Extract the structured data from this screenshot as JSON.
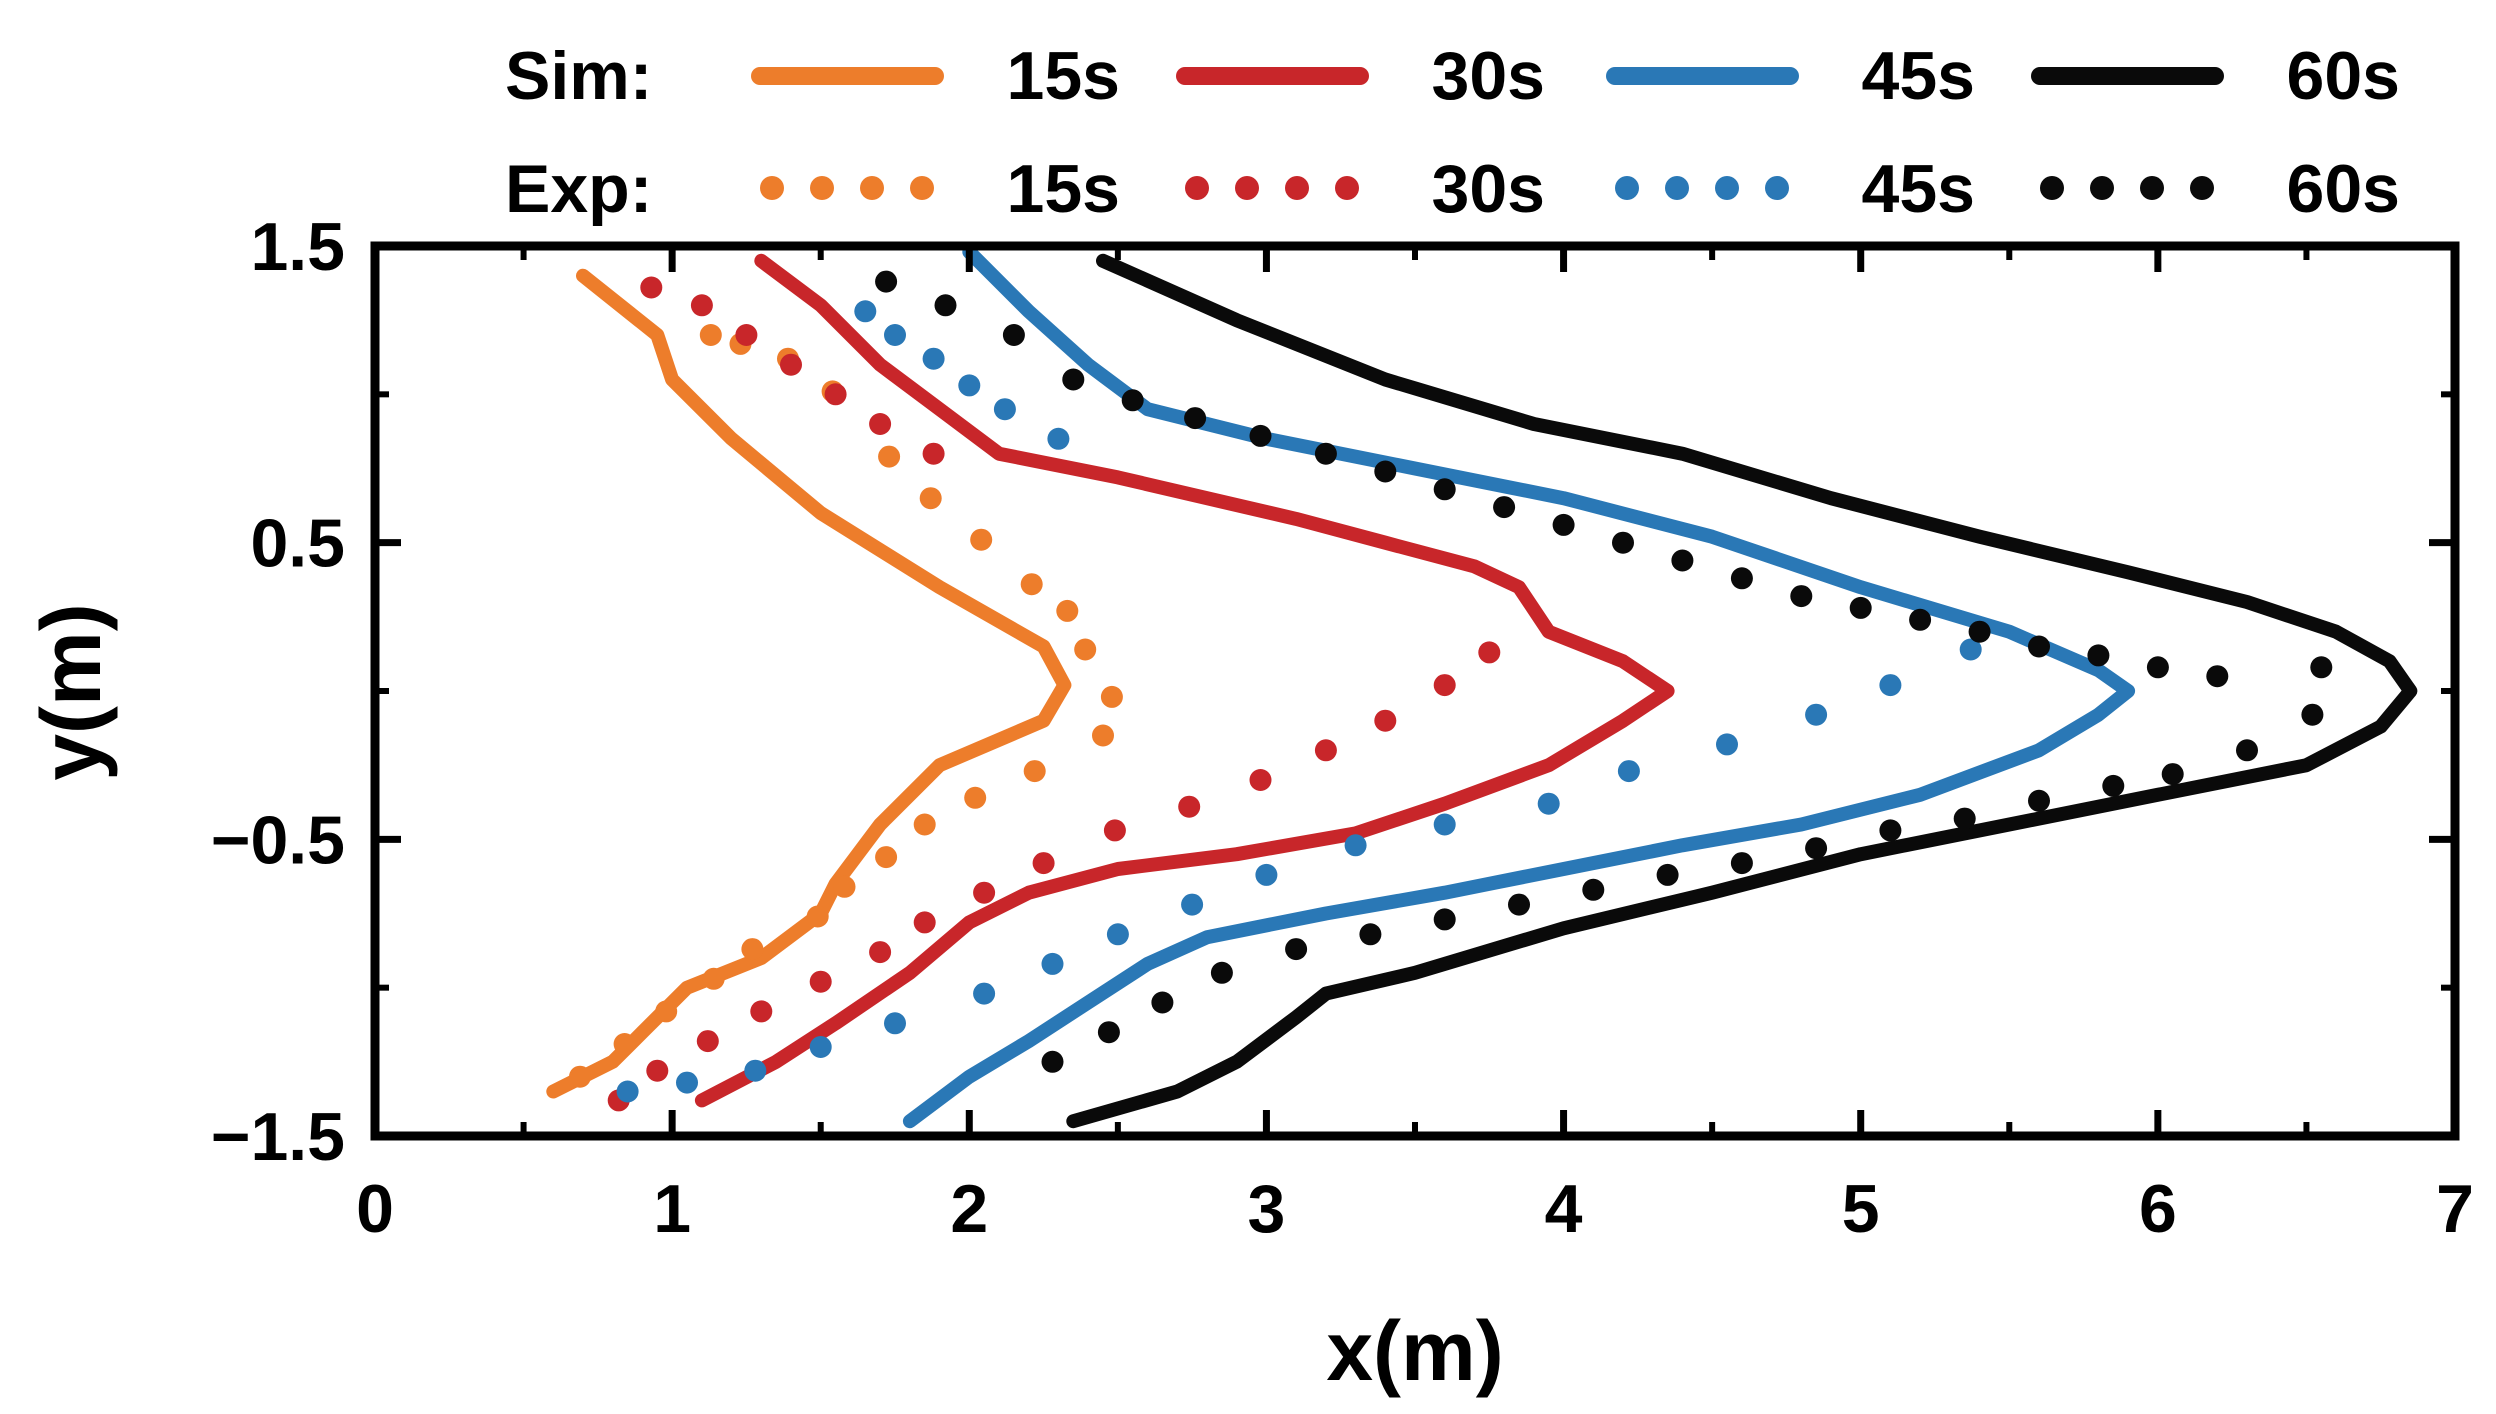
{
  "chart_data": {
    "type": "line",
    "title": "",
    "xlabel": "x(m)",
    "ylabel": "y(m)",
    "xlim": [
      0,
      7
    ],
    "ylim": [
      -1.5,
      1.5
    ],
    "x_ticks": [
      {
        "value": 0,
        "label": "0"
      },
      {
        "value": 1,
        "label": "1"
      },
      {
        "value": 2,
        "label": "2"
      },
      {
        "value": 3,
        "label": "3"
      },
      {
        "value": 4,
        "label": "4"
      },
      {
        "value": 5,
        "label": "5"
      },
      {
        "value": 6,
        "label": "6"
      },
      {
        "value": 7,
        "label": "7"
      }
    ],
    "y_ticks": [
      {
        "value": 1.5,
        "label": "1.5"
      },
      {
        "value": 0.5,
        "label": "0.5"
      },
      {
        "value": -0.5,
        "label": "−0.5"
      },
      {
        "value": -1.5,
        "label": "−1.5"
      }
    ],
    "legend": {
      "placement": "top",
      "row_labels": {
        "sim": "Sim:",
        "exp": "Exp:"
      },
      "entries": [
        "15s",
        "30s",
        "45s",
        "60s"
      ]
    },
    "series": [
      {
        "name": "Sim 15s",
        "group": "sim",
        "time": "15s",
        "color": "#ed7d2b",
        "style": "solid",
        "points": [
          [
            0.7,
            1.4
          ],
          [
            0.95,
            1.2
          ],
          [
            1.0,
            1.05
          ],
          [
            1.2,
            0.85
          ],
          [
            1.5,
            0.6
          ],
          [
            1.9,
            0.35
          ],
          [
            2.25,
            0.15
          ],
          [
            2.32,
            0.02
          ],
          [
            2.25,
            -0.1
          ],
          [
            1.9,
            -0.25
          ],
          [
            1.7,
            -0.45
          ],
          [
            1.55,
            -0.65
          ],
          [
            1.5,
            -0.75
          ],
          [
            1.3,
            -0.9
          ],
          [
            1.05,
            -1.0
          ],
          [
            0.9,
            -1.15
          ],
          [
            0.8,
            -1.25
          ],
          [
            0.6,
            -1.35
          ]
        ]
      },
      {
        "name": "Sim 30s",
        "group": "sim",
        "time": "30s",
        "color": "#c8262a",
        "style": "solid",
        "points": [
          [
            1.3,
            1.45
          ],
          [
            1.5,
            1.3
          ],
          [
            1.7,
            1.1
          ],
          [
            1.9,
            0.95
          ],
          [
            2.1,
            0.8
          ],
          [
            2.5,
            0.72
          ],
          [
            2.8,
            0.65
          ],
          [
            3.1,
            0.58
          ],
          [
            3.4,
            0.5
          ],
          [
            3.7,
            0.42
          ],
          [
            3.85,
            0.35
          ],
          [
            3.95,
            0.2
          ],
          [
            4.2,
            0.1
          ],
          [
            4.35,
            0.0
          ],
          [
            4.2,
            -0.1
          ],
          [
            3.95,
            -0.25
          ],
          [
            3.6,
            -0.38
          ],
          [
            3.3,
            -0.48
          ],
          [
            2.9,
            -0.55
          ],
          [
            2.5,
            -0.6
          ],
          [
            2.2,
            -0.68
          ],
          [
            2.0,
            -0.78
          ],
          [
            1.8,
            -0.95
          ],
          [
            1.55,
            -1.12
          ],
          [
            1.35,
            -1.25
          ],
          [
            1.1,
            -1.38
          ]
        ]
      },
      {
        "name": "Sim 45s",
        "group": "sim",
        "time": "45s",
        "color": "#2a78b6",
        "style": "solid",
        "points": [
          [
            2.0,
            1.48
          ],
          [
            2.2,
            1.28
          ],
          [
            2.4,
            1.1
          ],
          [
            2.6,
            0.95
          ],
          [
            3.0,
            0.85
          ],
          [
            3.5,
            0.75
          ],
          [
            4.0,
            0.65
          ],
          [
            4.5,
            0.52
          ],
          [
            5.0,
            0.35
          ],
          [
            5.5,
            0.2
          ],
          [
            5.8,
            0.07
          ],
          [
            5.9,
            0.0
          ],
          [
            5.8,
            -0.08
          ],
          [
            5.6,
            -0.2
          ],
          [
            5.2,
            -0.35
          ],
          [
            4.8,
            -0.45
          ],
          [
            4.4,
            -0.52
          ],
          [
            4.0,
            -0.6
          ],
          [
            3.6,
            -0.68
          ],
          [
            3.2,
            -0.75
          ],
          [
            2.8,
            -0.83
          ],
          [
            2.6,
            -0.92
          ],
          [
            2.4,
            -1.05
          ],
          [
            2.2,
            -1.18
          ],
          [
            2.0,
            -1.3
          ],
          [
            1.8,
            -1.45
          ]
        ]
      },
      {
        "name": "Sim 60s",
        "group": "sim",
        "time": "60s",
        "color": "#0a0a0a",
        "style": "solid",
        "points": [
          [
            2.45,
            1.45
          ],
          [
            2.9,
            1.25
          ],
          [
            3.4,
            1.05
          ],
          [
            3.9,
            0.9
          ],
          [
            4.4,
            0.8
          ],
          [
            4.9,
            0.65
          ],
          [
            5.4,
            0.52
          ],
          [
            5.9,
            0.4
          ],
          [
            6.3,
            0.3
          ],
          [
            6.6,
            0.2
          ],
          [
            6.78,
            0.1
          ],
          [
            6.85,
            0.0
          ],
          [
            6.75,
            -0.12
          ],
          [
            6.5,
            -0.25
          ],
          [
            6.0,
            -0.35
          ],
          [
            5.5,
            -0.45
          ],
          [
            5.0,
            -0.55
          ],
          [
            4.5,
            -0.68
          ],
          [
            4.0,
            -0.8
          ],
          [
            3.5,
            -0.95
          ],
          [
            3.2,
            -1.02
          ],
          [
            3.1,
            -1.1
          ],
          [
            2.9,
            -1.25
          ],
          [
            2.7,
            -1.35
          ],
          [
            2.35,
            -1.45
          ]
        ]
      },
      {
        "name": "Exp 15s",
        "group": "exp",
        "time": "15s",
        "color": "#ed7d2b",
        "style": "dotted",
        "points": [
          [
            1.13,
            1.2
          ],
          [
            1.23,
            1.17
          ],
          [
            1.39,
            1.12
          ],
          [
            1.54,
            1.01
          ],
          [
            1.73,
            0.79
          ],
          [
            1.87,
            0.65
          ],
          [
            2.04,
            0.51
          ],
          [
            2.21,
            0.36
          ],
          [
            2.33,
            0.27
          ],
          [
            2.39,
            0.14
          ],
          [
            2.48,
            -0.02
          ],
          [
            2.45,
            -0.15
          ],
          [
            2.22,
            -0.27
          ],
          [
            2.02,
            -0.36
          ],
          [
            1.85,
            -0.45
          ],
          [
            1.72,
            -0.56
          ],
          [
            1.58,
            -0.66
          ],
          [
            1.49,
            -0.76
          ],
          [
            1.27,
            -0.87
          ],
          [
            1.14,
            -0.97
          ],
          [
            0.98,
            -1.08
          ],
          [
            0.84,
            -1.19
          ],
          [
            0.69,
            -1.3
          ]
        ]
      },
      {
        "name": "Exp 30s",
        "group": "exp",
        "time": "30s",
        "color": "#c8262a",
        "style": "dotted",
        "points": [
          [
            0.93,
            1.36
          ],
          [
            1.1,
            1.3
          ],
          [
            1.25,
            1.2
          ],
          [
            1.4,
            1.1
          ],
          [
            1.55,
            1.0
          ],
          [
            1.7,
            0.9
          ],
          [
            1.88,
            0.8
          ],
          [
            3.75,
            0.13
          ],
          [
            3.6,
            0.02
          ],
          [
            3.4,
            -0.1
          ],
          [
            3.2,
            -0.2
          ],
          [
            2.98,
            -0.3
          ],
          [
            2.74,
            -0.39
          ],
          [
            2.49,
            -0.47
          ],
          [
            2.25,
            -0.58
          ],
          [
            2.05,
            -0.68
          ],
          [
            1.85,
            -0.78
          ],
          [
            1.7,
            -0.88
          ],
          [
            1.5,
            -0.98
          ],
          [
            1.3,
            -1.08
          ],
          [
            1.12,
            -1.18
          ],
          [
            0.95,
            -1.28
          ],
          [
            0.82,
            -1.38
          ]
        ]
      },
      {
        "name": "Exp 45s",
        "group": "exp",
        "time": "45s",
        "color": "#2a78b6",
        "style": "dotted",
        "points": [
          [
            1.65,
            1.28
          ],
          [
            1.75,
            1.2
          ],
          [
            1.88,
            1.12
          ],
          [
            2.0,
            1.03
          ],
          [
            2.12,
            0.95
          ],
          [
            2.3,
            0.85
          ],
          [
            5.37,
            0.14
          ],
          [
            5.1,
            0.02
          ],
          [
            4.85,
            -0.08
          ],
          [
            4.55,
            -0.18
          ],
          [
            4.22,
            -0.27
          ],
          [
            3.95,
            -0.38
          ],
          [
            3.6,
            -0.45
          ],
          [
            3.3,
            -0.52
          ],
          [
            3.0,
            -0.62
          ],
          [
            2.75,
            -0.72
          ],
          [
            2.5,
            -0.82
          ],
          [
            2.28,
            -0.92
          ],
          [
            2.05,
            -1.02
          ],
          [
            1.75,
            -1.12
          ],
          [
            1.5,
            -1.2
          ],
          [
            1.28,
            -1.28
          ],
          [
            1.05,
            -1.32
          ],
          [
            0.85,
            -1.35
          ]
        ]
      },
      {
        "name": "Exp 60s",
        "group": "exp",
        "time": "60s",
        "color": "#0a0a0a",
        "style": "dotted",
        "points": [
          [
            1.72,
            1.38
          ],
          [
            1.92,
            1.3
          ],
          [
            2.15,
            1.2
          ],
          [
            2.35,
            1.05
          ],
          [
            2.55,
            0.98
          ],
          [
            2.76,
            0.92
          ],
          [
            2.98,
            0.86
          ],
          [
            3.2,
            0.8
          ],
          [
            3.4,
            0.74
          ],
          [
            3.6,
            0.68
          ],
          [
            3.8,
            0.62
          ],
          [
            4.0,
            0.56
          ],
          [
            4.2,
            0.5
          ],
          [
            4.4,
            0.44
          ],
          [
            4.6,
            0.38
          ],
          [
            4.8,
            0.32
          ],
          [
            5.0,
            0.28
          ],
          [
            5.2,
            0.24
          ],
          [
            5.4,
            0.2
          ],
          [
            5.6,
            0.15
          ],
          [
            5.8,
            0.12
          ],
          [
            6.0,
            0.08
          ],
          [
            6.2,
            0.05
          ],
          [
            6.55,
            0.08
          ],
          [
            6.52,
            -0.08
          ],
          [
            6.3,
            -0.2
          ],
          [
            6.05,
            -0.28
          ],
          [
            5.85,
            -0.32
          ],
          [
            5.6,
            -0.37
          ],
          [
            5.35,
            -0.43
          ],
          [
            5.1,
            -0.47
          ],
          [
            4.85,
            -0.53
          ],
          [
            4.6,
            -0.58
          ],
          [
            4.35,
            -0.62
          ],
          [
            4.1,
            -0.67
          ],
          [
            3.85,
            -0.72
          ],
          [
            3.6,
            -0.77
          ],
          [
            3.35,
            -0.82
          ],
          [
            3.1,
            -0.87
          ],
          [
            2.85,
            -0.95
          ],
          [
            2.65,
            -1.05
          ],
          [
            2.47,
            -1.15
          ],
          [
            2.28,
            -1.25
          ]
        ]
      }
    ]
  }
}
